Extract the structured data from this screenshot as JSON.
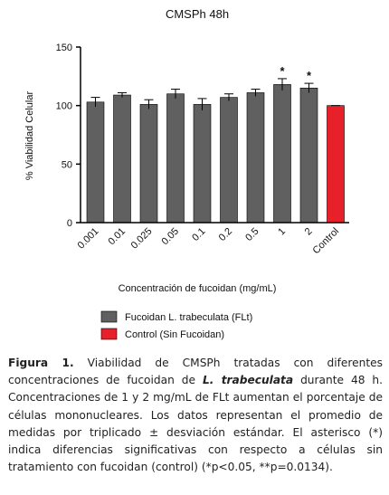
{
  "chart_data": {
    "type": "bar",
    "title": "CMSPh 48h",
    "x_label": "Concentración de fucoidan (mg/mL)",
    "y_label": "% Viabilidad Celular",
    "categories": [
      "0.001",
      "0.01",
      "0.025",
      "0.05",
      "0.1",
      "0.2",
      "0.5",
      "1",
      "2",
      "Control"
    ],
    "series": [
      {
        "name": "Fucoidan L. trabeculata (FLt)",
        "color": "#606060",
        "values": [
          103,
          109,
          101,
          110,
          101,
          107,
          111,
          118,
          115,
          null
        ],
        "errors": [
          4,
          2,
          4,
          4,
          5,
          3,
          3,
          5,
          4,
          null
        ]
      },
      {
        "name": "Control (Sin Fucoidan)",
        "color": "#e8202a",
        "values": [
          null,
          null,
          null,
          null,
          null,
          null,
          null,
          null,
          null,
          100
        ],
        "errors": [
          null,
          null,
          null,
          null,
          null,
          null,
          null,
          null,
          null,
          0
        ]
      }
    ],
    "annotations": [
      {
        "text": "*",
        "category": "1"
      },
      {
        "text": "*",
        "category": "2"
      }
    ],
    "ylim": [
      0,
      150
    ],
    "yticks": [
      0,
      50,
      100,
      150
    ]
  },
  "caption": {
    "label": "Figura 1.",
    "text_before": "Viabilidad de CMSPh tratadas con diferentes concentraciones de fucoidan de",
    "species": "L. trabeculata",
    "text_after": "durante 48 h. Concentraciones de 1 y 2 mg/mL de FLt aumentan el porcentaje de células mononucleares. Los datos representan el promedio de medidas por triplicado ± desviación estándar. El asterisco (*) indica diferencias significativas con respecto a células sin tratamiento con fucoidan (control) (*p<0.05, **p=0.0134)."
  }
}
